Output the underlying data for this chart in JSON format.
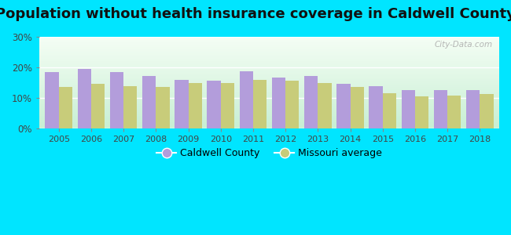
{
  "title": "Population without health insurance coverage in Caldwell County",
  "years": [
    2005,
    2006,
    2007,
    2008,
    2009,
    2010,
    2011,
    2012,
    2013,
    2014,
    2015,
    2016,
    2017,
    2018
  ],
  "caldwell": [
    0.185,
    0.195,
    0.185,
    0.173,
    0.16,
    0.157,
    0.188,
    0.168,
    0.173,
    0.147,
    0.14,
    0.125,
    0.127,
    0.127
  ],
  "missouri": [
    0.135,
    0.147,
    0.138,
    0.136,
    0.15,
    0.15,
    0.158,
    0.157,
    0.15,
    0.136,
    0.116,
    0.105,
    0.108,
    0.113
  ],
  "caldwell_color": "#b39ddb",
  "missouri_color": "#c8cc7a",
  "background_outer": "#00e5ff",
  "background_inner_top": "#f0f8f0",
  "background_inner_bottom": "#d0f0d8",
  "ylim": [
    0,
    0.3
  ],
  "yticks": [
    0.0,
    0.1,
    0.2,
    0.3
  ],
  "legend_caldwell": "Caldwell County",
  "legend_missouri": "Missouri average",
  "title_fontsize": 13,
  "bar_width": 0.42,
  "watermark": "City-Data.com"
}
